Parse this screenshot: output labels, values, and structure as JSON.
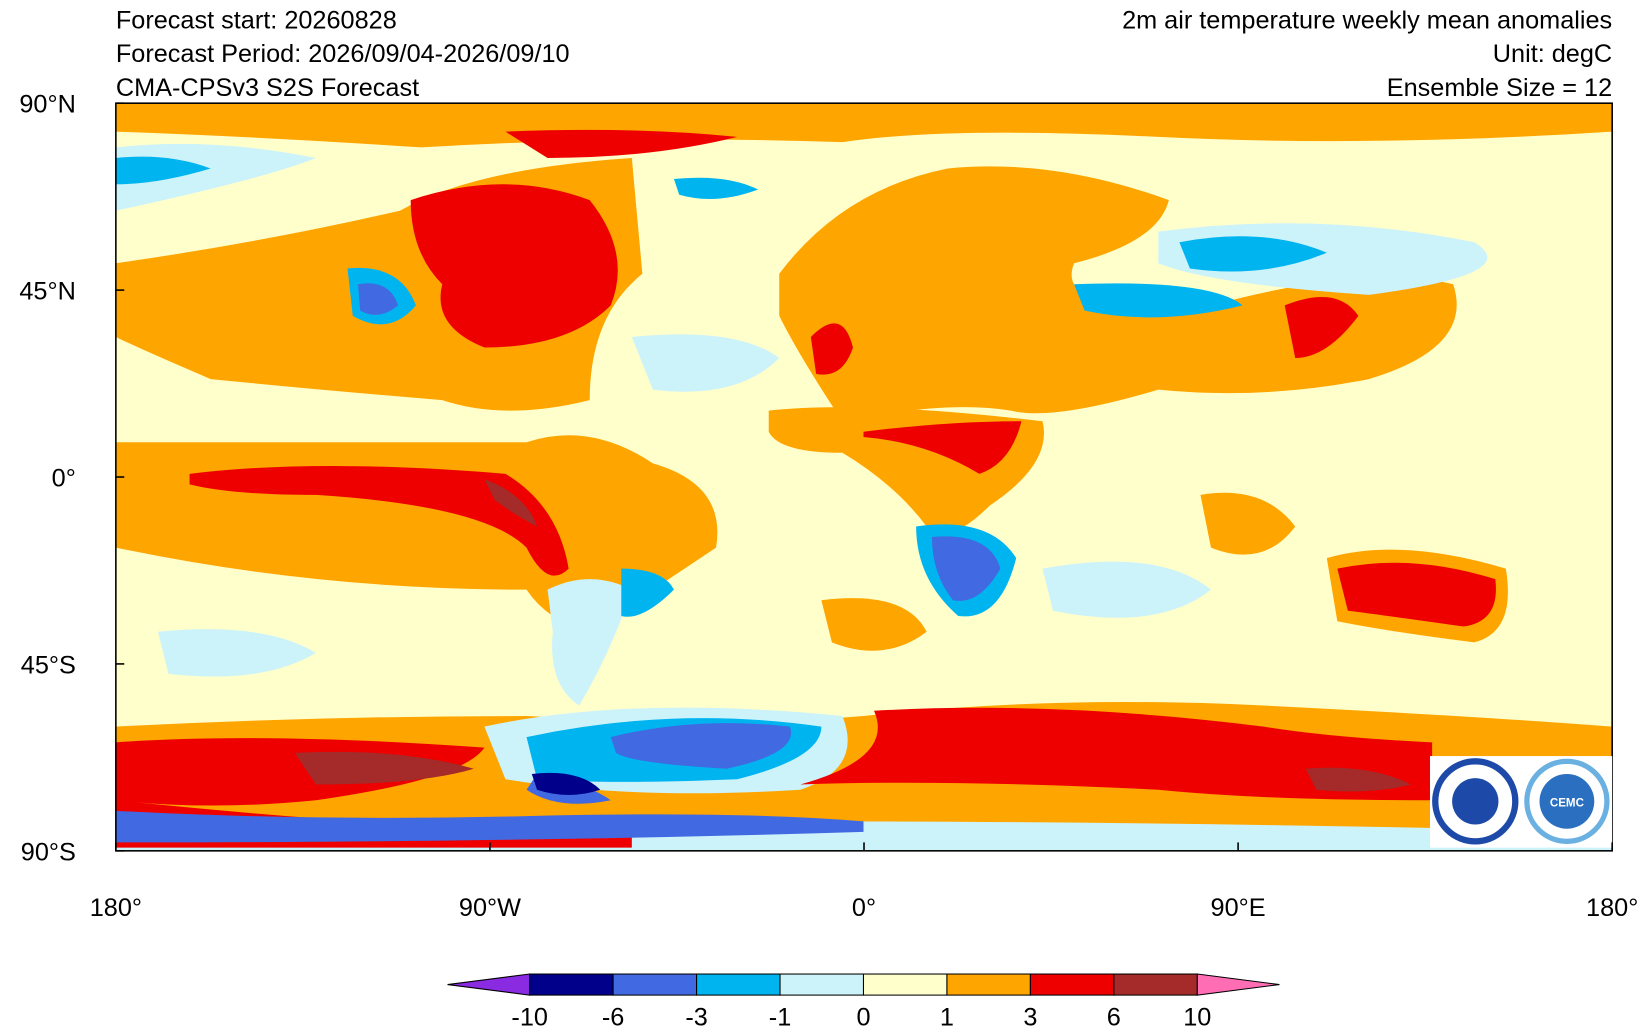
{
  "header": {
    "left": [
      "Forecast start: 20260828",
      "Forecast Period: 2026/09/04-2026/09/10",
      "CMA-CPSv3 S2S Forecast"
    ],
    "right": [
      "2m air temperature weekly mean anomalies",
      "Unit: degC",
      "Ensemble Size = 12"
    ]
  },
  "map": {
    "xlim": [
      -180,
      180
    ],
    "ylim": [
      -90,
      90
    ],
    "xticks": [
      {
        "value": -180,
        "label": "180°"
      },
      {
        "value": -90,
        "label": "90°W"
      },
      {
        "value": 0,
        "label": "0°"
      },
      {
        "value": 90,
        "label": "90°E"
      },
      {
        "value": 180,
        "label": "180°"
      }
    ],
    "yticks": [
      {
        "value": 90,
        "label": "90°N"
      },
      {
        "value": 45,
        "label": "45°N"
      },
      {
        "value": 0,
        "label": "0°"
      },
      {
        "value": -45,
        "label": "45°S"
      },
      {
        "value": -90,
        "label": "90°S"
      }
    ]
  },
  "colorbar": {
    "levels": [
      -10,
      -6,
      -3,
      -1,
      0,
      1,
      3,
      6,
      10
    ],
    "colors": [
      "#8a2be2",
      "#00008b",
      "#4169e1",
      "#00b4f0",
      "#ccf2fa",
      "#ffffcc",
      "#ffa500",
      "#ee0000",
      "#a52a2a",
      "#ff6eb4"
    ]
  },
  "logo": {
    "text": "CEMC"
  }
}
